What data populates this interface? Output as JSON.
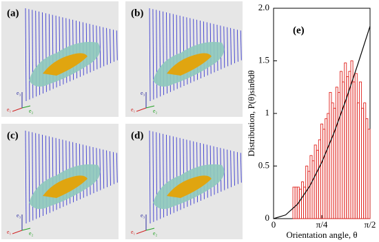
{
  "panels": [
    {
      "label": "(a)"
    },
    {
      "label": "(b)"
    },
    {
      "label": "(c)"
    },
    {
      "label": "(d)"
    }
  ],
  "panel_axis_labels": [
    "e₁",
    "e₂",
    "e₃"
  ],
  "chart_data": {
    "type": "histogram",
    "annotation": "(e)",
    "x_label": "Orientation angle, θ",
    "y_label": "Distribution, P(θ)sinθdθ",
    "bins": [
      0.3142,
      0.3491,
      0.384,
      0.4189,
      0.4538,
      0.4887,
      0.5236,
      0.5585,
      0.5934,
      0.6283,
      0.6632,
      0.6981,
      0.733,
      0.7679,
      0.8029,
      0.8378,
      0.8727,
      0.9076,
      0.9425,
      0.9774,
      1.0123,
      1.0472,
      1.0821,
      1.117,
      1.1519,
      1.1868,
      1.2217,
      1.2566,
      1.2915,
      1.3265,
      1.3614,
      1.3963,
      1.4312,
      1.4661,
      1.501,
      1.5359,
      1.5708
    ],
    "values": [
      0.3,
      0.3,
      0.3,
      0.28,
      0.35,
      0.3,
      0.5,
      0.45,
      0.6,
      0.55,
      0.7,
      0.65,
      0.75,
      0.9,
      0.85,
      0.95,
      1.0,
      1.2,
      1.1,
      1.05,
      1.25,
      1.2,
      1.4,
      1.3,
      1.48,
      1.35,
      1.4,
      1.5,
      1.3,
      1.38,
      1.1,
      1.3,
      1.05,
      1.1,
      0.95,
      0.85
    ],
    "color": "#e0201b",
    "curve": {
      "x": [
        0,
        0.1963,
        0.3927,
        0.589,
        0.7854,
        0.9817,
        1.1781,
        1.3744,
        1.5708
      ],
      "values": [
        0,
        0.035,
        0.139,
        0.309,
        0.536,
        0.812,
        1.129,
        1.473,
        1.83
      ],
      "color": "#000000"
    },
    "xlim": [
      0,
      1.5708
    ],
    "ylim": [
      0,
      2
    ],
    "xticks": [
      0,
      {
        "value": 0.7854,
        "label": "π/4"
      },
      {
        "value": 1.5708,
        "label": "π/2"
      }
    ],
    "yticks": [
      0,
      0.5,
      1,
      1.5,
      {
        "value": 2,
        "label": "2.0"
      }
    ]
  }
}
